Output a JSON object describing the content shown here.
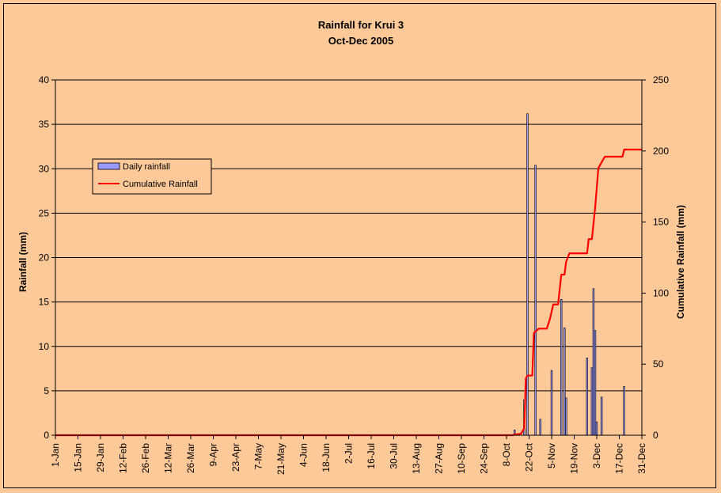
{
  "chart_data": {
    "type": "bar",
    "title": "Rainfall for Krui 3",
    "subtitle": "Oct-Dec 2005",
    "ylabel": "Rainfall (mm)",
    "y2label": "Cumulative Rainfall (mm)",
    "ylim": [
      0,
      40
    ],
    "y2lim": [
      0,
      250
    ],
    "yticks": [
      0,
      5,
      10,
      15,
      20,
      25,
      30,
      35,
      40
    ],
    "y2ticks": [
      0,
      50,
      100,
      150,
      200,
      250
    ],
    "x_range_days": [
      0,
      364
    ],
    "xticks": [
      {
        "label": "1-Jan",
        "day": 0
      },
      {
        "label": "15-Jan",
        "day": 14
      },
      {
        "label": "29-Jan",
        "day": 28
      },
      {
        "label": "12-Feb",
        "day": 42
      },
      {
        "label": "26-Feb",
        "day": 56
      },
      {
        "label": "12-Mar",
        "day": 70
      },
      {
        "label": "26-Mar",
        "day": 84
      },
      {
        "label": "9-Apr",
        "day": 98
      },
      {
        "label": "23-Apr",
        "day": 112
      },
      {
        "label": "7-May",
        "day": 126
      },
      {
        "label": "21-May",
        "day": 140
      },
      {
        "label": "4-Jun",
        "day": 154
      },
      {
        "label": "18-Jun",
        "day": 168
      },
      {
        "label": "2-Jul",
        "day": 182
      },
      {
        "label": "16-Jul",
        "day": 196
      },
      {
        "label": "30-Jul",
        "day": 210
      },
      {
        "label": "13-Aug",
        "day": 224
      },
      {
        "label": "27-Aug",
        "day": 238
      },
      {
        "label": "10-Sep",
        "day": 252
      },
      {
        "label": "24-Sep",
        "day": 266
      },
      {
        "label": "8-Oct",
        "day": 280
      },
      {
        "label": "22-Oct",
        "day": 294
      },
      {
        "label": "5-Nov",
        "day": 308
      },
      {
        "label": "19-Nov",
        "day": 322
      },
      {
        "label": "3-Dec",
        "day": 336
      },
      {
        "label": "17-Dec",
        "day": 350
      },
      {
        "label": "31-Dec",
        "day": 364
      }
    ],
    "legend_position": "left",
    "grid": true,
    "colors": {
      "background": "#fdc999",
      "bar_fill": "#9999ff",
      "cumulative_line": "#ff0000",
      "gridline": "#000000"
    },
    "series": [
      {
        "name": "Daily rainfall",
        "type": "bar",
        "axis": "left",
        "points": [
          {
            "day": 285,
            "value": 0.6
          },
          {
            "day": 291,
            "value": 4.0
          },
          {
            "day": 293,
            "value": 36.2
          },
          {
            "day": 298,
            "value": 30.4
          },
          {
            "day": 301,
            "value": 1.8
          },
          {
            "day": 308,
            "value": 7.3
          },
          {
            "day": 314,
            "value": 15.3
          },
          {
            "day": 316,
            "value": 12.1
          },
          {
            "day": 317,
            "value": 4.2
          },
          {
            "day": 330,
            "value": 8.7
          },
          {
            "day": 333,
            "value": 7.6
          },
          {
            "day": 334,
            "value": 16.5
          },
          {
            "day": 335,
            "value": 11.8
          },
          {
            "day": 336,
            "value": 1.5
          },
          {
            "day": 339,
            "value": 4.3
          },
          {
            "day": 353,
            "value": 5.5
          }
        ]
      },
      {
        "name": "Cumulative Rainfall",
        "type": "line",
        "axis": "right",
        "points": [
          {
            "day": 0,
            "value": 0
          },
          {
            "day": 284,
            "value": 0
          },
          {
            "day": 285,
            "value": 0.6
          },
          {
            "day": 289,
            "value": 1.0
          },
          {
            "day": 291,
            "value": 5.0
          },
          {
            "day": 292,
            "value": 40
          },
          {
            "day": 293,
            "value": 42
          },
          {
            "day": 296,
            "value": 42
          },
          {
            "day": 297,
            "value": 72
          },
          {
            "day": 298,
            "value": 73
          },
          {
            "day": 300,
            "value": 75
          },
          {
            "day": 305,
            "value": 75
          },
          {
            "day": 307,
            "value": 82
          },
          {
            "day": 309,
            "value": 92
          },
          {
            "day": 312,
            "value": 92
          },
          {
            "day": 314,
            "value": 113
          },
          {
            "day": 316,
            "value": 113
          },
          {
            "day": 317,
            "value": 122
          },
          {
            "day": 319,
            "value": 128
          },
          {
            "day": 330,
            "value": 128
          },
          {
            "day": 331,
            "value": 138
          },
          {
            "day": 333,
            "value": 138
          },
          {
            "day": 335,
            "value": 160
          },
          {
            "day": 337,
            "value": 188
          },
          {
            "day": 339,
            "value": 192
          },
          {
            "day": 341,
            "value": 196
          },
          {
            "day": 352,
            "value": 196
          },
          {
            "day": 353,
            "value": 201
          },
          {
            "day": 364,
            "value": 201
          }
        ]
      }
    ]
  }
}
